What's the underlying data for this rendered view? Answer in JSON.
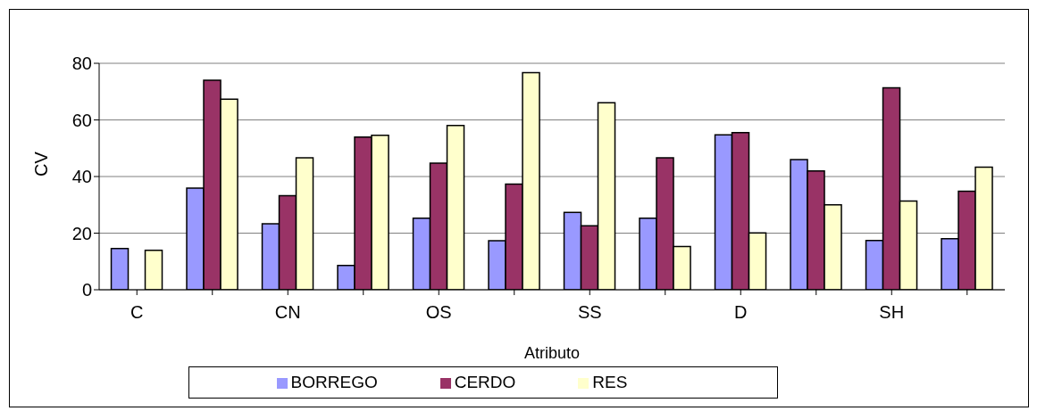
{
  "chart_data": {
    "type": "bar",
    "xlabel": "Atributo",
    "ylabel": "CV",
    "categories": [
      "C",
      null,
      "CN",
      null,
      "OS",
      null,
      "SS",
      null,
      "D",
      null,
      "SH",
      null
    ],
    "series": [
      {
        "name": "BORREGO",
        "color": "#9999ff",
        "values": [
          14.6,
          35.9,
          23.3,
          8.6,
          25.3,
          17.3,
          27.3,
          25.3,
          54.7,
          46.0,
          17.4,
          18.0
        ]
      },
      {
        "name": "CERDO",
        "color": "#993366",
        "values": [
          null,
          74.0,
          33.2,
          53.9,
          44.7,
          37.3,
          22.6,
          46.6,
          55.5,
          42.0,
          71.3,
          34.8
        ]
      },
      {
        "name": "RES",
        "color": "#ffffcc",
        "values": [
          13.9,
          67.3,
          46.6,
          54.6,
          58.0,
          76.7,
          66.1,
          15.3,
          20.1,
          30.0,
          31.3,
          43.3
        ]
      }
    ],
    "ylim": [
      0,
      80
    ],
    "yticks": [
      0,
      20,
      40,
      60,
      80
    ],
    "grid": "y",
    "legend": "bottom"
  }
}
